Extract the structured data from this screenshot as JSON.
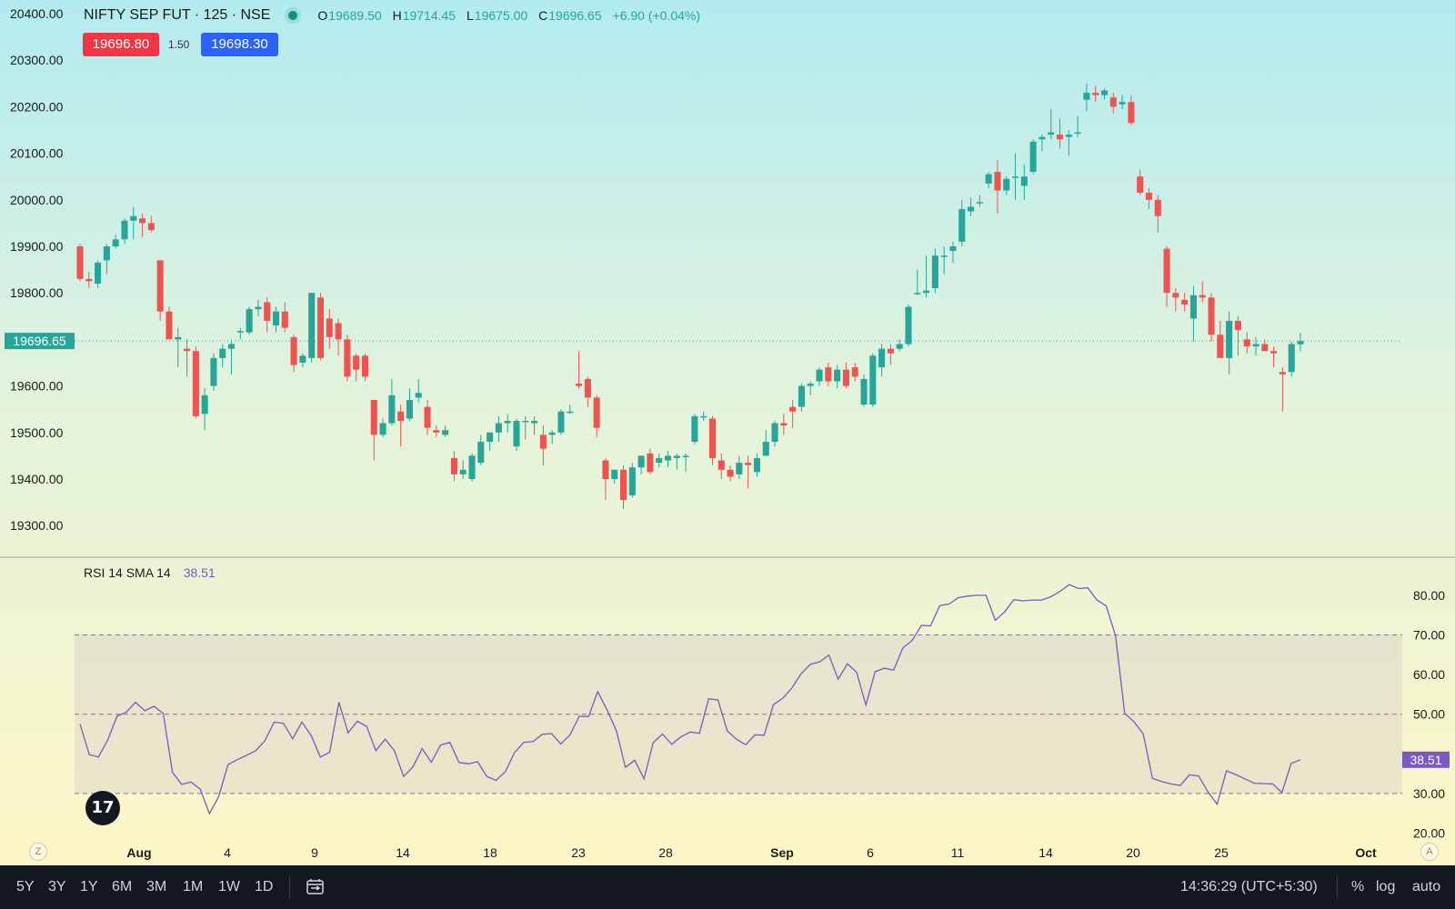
{
  "header": {
    "symbol": "NIFTY SEP FUT · 125 · NSE",
    "o_label": "O",
    "o_value": "19689.50",
    "h_label": "H",
    "h_value": "19714.45",
    "l_label": "L",
    "l_value": "19675.00",
    "c_label": "C",
    "c_value": "19696.65",
    "change": "+6.90 (+0.04%)",
    "sell_price": "19696.80",
    "spread": "1.50",
    "buy_price": "19698.30"
  },
  "rsi_header": {
    "label": "RSI 14 SMA 14",
    "value": "38.51"
  },
  "colors": {
    "up": "#26a69a",
    "down": "#ef5350",
    "rsi": "#7e57c2",
    "sell": "#f23645",
    "buy": "#2962ff"
  },
  "price_axis": {
    "ticks": [
      "20400.00",
      "20300.00",
      "20200.00",
      "20100.00",
      "20000.00",
      "19900.00",
      "19800.00",
      "19600.00",
      "19500.00",
      "19400.00",
      "19300.00"
    ],
    "last_price": "19696.65"
  },
  "rsi_axis": {
    "ticks": [
      "80.00",
      "70.00",
      "60.00",
      "50.00",
      "30.00",
      "20.00"
    ],
    "last_value": "38.51"
  },
  "time_axis": {
    "labels": [
      "Aug",
      "4",
      "9",
      "14",
      "18",
      "23",
      "28",
      "Sep",
      "6",
      "11",
      "14",
      "20",
      "25",
      "Oct"
    ]
  },
  "toolbar": {
    "ranges": [
      "5Y",
      "3Y",
      "1Y",
      "6M",
      "3M",
      "1M",
      "1W",
      "1D"
    ],
    "calendar_icon": "calendar-icon",
    "time": "14:36:29 (UTC+5:30)",
    "percent": "%",
    "log": "log",
    "auto": "auto"
  },
  "chart_data": [
    {
      "type": "candlestick",
      "title": "NIFTY SEP FUT · 125 · NSE",
      "ylim": [
        19250,
        20425
      ],
      "x_range": [
        "Jul 28",
        "Oct 3"
      ],
      "last_price": 19696.65,
      "candles": [
        {
          "o": 19900,
          "h": 19905,
          "l": 19825,
          "c": 19830
        },
        {
          "o": 19830,
          "h": 19845,
          "l": 19810,
          "c": 19825
        },
        {
          "o": 19820,
          "h": 19870,
          "l": 19810,
          "c": 19865
        },
        {
          "o": 19870,
          "h": 19905,
          "l": 19840,
          "c": 19900
        },
        {
          "o": 19900,
          "h": 19925,
          "l": 19895,
          "c": 19915
        },
        {
          "o": 19915,
          "h": 19960,
          "l": 19905,
          "c": 19955
        },
        {
          "o": 19955,
          "h": 19985,
          "l": 19915,
          "c": 19965
        },
        {
          "o": 19960,
          "h": 19970,
          "l": 19920,
          "c": 19950
        },
        {
          "o": 19950,
          "h": 19965,
          "l": 19930,
          "c": 19935
        },
        {
          "o": 19870,
          "h": 19870,
          "l": 19740,
          "c": 19760
        },
        {
          "o": 19760,
          "h": 19770,
          "l": 19700,
          "c": 19700
        },
        {
          "o": 19700,
          "h": 19725,
          "l": 19640,
          "c": 19705
        },
        {
          "o": 19680,
          "h": 19700,
          "l": 19620,
          "c": 19675
        },
        {
          "o": 19675,
          "h": 19685,
          "l": 19530,
          "c": 19535
        },
        {
          "o": 19540,
          "h": 19595,
          "l": 19505,
          "c": 19580
        },
        {
          "o": 19600,
          "h": 19670,
          "l": 19590,
          "c": 19660
        },
        {
          "o": 19660,
          "h": 19690,
          "l": 19640,
          "c": 19680
        },
        {
          "o": 19680,
          "h": 19700,
          "l": 19625,
          "c": 19690
        },
        {
          "o": 19715,
          "h": 19725,
          "l": 19700,
          "c": 19718
        },
        {
          "o": 19715,
          "h": 19770,
          "l": 19710,
          "c": 19765
        },
        {
          "o": 19765,
          "h": 19785,
          "l": 19750,
          "c": 19770
        },
        {
          "o": 19780,
          "h": 19790,
          "l": 19715,
          "c": 19740
        },
        {
          "o": 19730,
          "h": 19770,
          "l": 19715,
          "c": 19760
        },
        {
          "o": 19760,
          "h": 19780,
          "l": 19715,
          "c": 19725
        },
        {
          "o": 19705,
          "h": 19710,
          "l": 19630,
          "c": 19645
        },
        {
          "o": 19650,
          "h": 19670,
          "l": 19640,
          "c": 19665
        },
        {
          "o": 19660,
          "h": 19800,
          "l": 19650,
          "c": 19800
        },
        {
          "o": 19790,
          "h": 19800,
          "l": 19655,
          "c": 19660
        },
        {
          "o": 19745,
          "h": 19765,
          "l": 19680,
          "c": 19705
        },
        {
          "o": 19735,
          "h": 19745,
          "l": 19665,
          "c": 19700
        },
        {
          "o": 19700,
          "h": 19710,
          "l": 19610,
          "c": 19620
        },
        {
          "o": 19665,
          "h": 19670,
          "l": 19610,
          "c": 19635
        },
        {
          "o": 19665,
          "h": 19670,
          "l": 19610,
          "c": 19620
        },
        {
          "o": 19570,
          "h": 19570,
          "l": 19440,
          "c": 19495
        },
        {
          "o": 19495,
          "h": 19530,
          "l": 19490,
          "c": 19520
        },
        {
          "o": 19520,
          "h": 19615,
          "l": 19515,
          "c": 19580
        },
        {
          "o": 19545,
          "h": 19560,
          "l": 19470,
          "c": 19525
        },
        {
          "o": 19530,
          "h": 19595,
          "l": 19525,
          "c": 19570
        },
        {
          "o": 19575,
          "h": 19615,
          "l": 19565,
          "c": 19585
        },
        {
          "o": 19555,
          "h": 19570,
          "l": 19495,
          "c": 19510
        },
        {
          "o": 19505,
          "h": 19515,
          "l": 19490,
          "c": 19500
        },
        {
          "o": 19495,
          "h": 19515,
          "l": 19490,
          "c": 19505
        },
        {
          "o": 19445,
          "h": 19460,
          "l": 19395,
          "c": 19410
        },
        {
          "o": 19410,
          "h": 19440,
          "l": 19400,
          "c": 19420
        },
        {
          "o": 19400,
          "h": 19455,
          "l": 19395,
          "c": 19450
        },
        {
          "o": 19435,
          "h": 19495,
          "l": 19430,
          "c": 19480
        },
        {
          "o": 19480,
          "h": 19500,
          "l": 19460,
          "c": 19500
        },
        {
          "o": 19500,
          "h": 19535,
          "l": 19480,
          "c": 19520
        },
        {
          "o": 19520,
          "h": 19540,
          "l": 19500,
          "c": 19525
        },
        {
          "o": 19470,
          "h": 19530,
          "l": 19460,
          "c": 19525
        },
        {
          "o": 19525,
          "h": 19535,
          "l": 19485,
          "c": 19525
        },
        {
          "o": 19520,
          "h": 19535,
          "l": 19495,
          "c": 19525
        },
        {
          "o": 19495,
          "h": 19515,
          "l": 19430,
          "c": 19465
        },
        {
          "o": 19495,
          "h": 19505,
          "l": 19475,
          "c": 19500
        },
        {
          "o": 19500,
          "h": 19550,
          "l": 19495,
          "c": 19545
        },
        {
          "o": 19545,
          "h": 19560,
          "l": 19540,
          "c": 19545
        },
        {
          "o": 19605,
          "h": 19675,
          "l": 19595,
          "c": 19600
        },
        {
          "o": 19615,
          "h": 19620,
          "l": 19555,
          "c": 19575
        },
        {
          "o": 19575,
          "h": 19580,
          "l": 19490,
          "c": 19510
        },
        {
          "o": 19440,
          "h": 19445,
          "l": 19355,
          "c": 19400
        },
        {
          "o": 19400,
          "h": 19420,
          "l": 19390,
          "c": 19420
        },
        {
          "o": 19420,
          "h": 19430,
          "l": 19335,
          "c": 19355
        },
        {
          "o": 19365,
          "h": 19435,
          "l": 19360,
          "c": 19425
        },
        {
          "o": 19425,
          "h": 19450,
          "l": 19410,
          "c": 19450
        },
        {
          "o": 19455,
          "h": 19465,
          "l": 19410,
          "c": 19415
        },
        {
          "o": 19435,
          "h": 19455,
          "l": 19425,
          "c": 19445
        },
        {
          "o": 19440,
          "h": 19460,
          "l": 19425,
          "c": 19450
        },
        {
          "o": 19445,
          "h": 19455,
          "l": 19420,
          "c": 19450
        },
        {
          "o": 19450,
          "h": 19455,
          "l": 19415,
          "c": 19450
        },
        {
          "o": 19480,
          "h": 19540,
          "l": 19475,
          "c": 19535
        },
        {
          "o": 19535,
          "h": 19545,
          "l": 19525,
          "c": 19535
        },
        {
          "o": 19530,
          "h": 19535,
          "l": 19430,
          "c": 19445
        },
        {
          "o": 19440,
          "h": 19455,
          "l": 19400,
          "c": 19420
        },
        {
          "o": 19420,
          "h": 19430,
          "l": 19395,
          "c": 19405
        },
        {
          "o": 19410,
          "h": 19450,
          "l": 19400,
          "c": 19435
        },
        {
          "o": 19435,
          "h": 19450,
          "l": 19380,
          "c": 19430
        },
        {
          "o": 19415,
          "h": 19455,
          "l": 19405,
          "c": 19445
        },
        {
          "o": 19450,
          "h": 19505,
          "l": 19450,
          "c": 19480
        },
        {
          "o": 19480,
          "h": 19525,
          "l": 19470,
          "c": 19520
        },
        {
          "o": 19520,
          "h": 19540,
          "l": 19495,
          "c": 19515
        },
        {
          "o": 19555,
          "h": 19570,
          "l": 19510,
          "c": 19545
        },
        {
          "o": 19555,
          "h": 19605,
          "l": 19545,
          "c": 19600
        },
        {
          "o": 19600,
          "h": 19610,
          "l": 19580,
          "c": 19605
        },
        {
          "o": 19610,
          "h": 19640,
          "l": 19600,
          "c": 19635
        },
        {
          "o": 19640,
          "h": 19650,
          "l": 19600,
          "c": 19610
        },
        {
          "o": 19610,
          "h": 19645,
          "l": 19595,
          "c": 19635
        },
        {
          "o": 19635,
          "h": 19650,
          "l": 19595,
          "c": 19600
        },
        {
          "o": 19640,
          "h": 19650,
          "l": 19610,
          "c": 19620
        },
        {
          "o": 19560,
          "h": 19625,
          "l": 19555,
          "c": 19615
        },
        {
          "o": 19560,
          "h": 19670,
          "l": 19555,
          "c": 19665
        },
        {
          "o": 19640,
          "h": 19690,
          "l": 19620,
          "c": 19680
        },
        {
          "o": 19680,
          "h": 19690,
          "l": 19645,
          "c": 19670
        },
        {
          "o": 19680,
          "h": 19700,
          "l": 19675,
          "c": 19690
        },
        {
          "o": 19690,
          "h": 19775,
          "l": 19685,
          "c": 19770
        },
        {
          "o": 19800,
          "h": 19850,
          "l": 19795,
          "c": 19800
        },
        {
          "o": 19800,
          "h": 19880,
          "l": 19790,
          "c": 19805
        },
        {
          "o": 19810,
          "h": 19895,
          "l": 19800,
          "c": 19880
        },
        {
          "o": 19880,
          "h": 19900,
          "l": 19840,
          "c": 19880
        },
        {
          "o": 19890,
          "h": 19910,
          "l": 19865,
          "c": 19900
        },
        {
          "o": 19910,
          "h": 20000,
          "l": 19900,
          "c": 19980
        },
        {
          "o": 19975,
          "h": 20005,
          "l": 19965,
          "c": 19985
        },
        {
          "o": 19995,
          "h": 20010,
          "l": 19985,
          "c": 19995
        },
        {
          "o": 20035,
          "h": 20060,
          "l": 20025,
          "c": 20055
        },
        {
          "o": 20060,
          "h": 20085,
          "l": 19970,
          "c": 20020
        },
        {
          "o": 20020,
          "h": 20050,
          "l": 20010,
          "c": 20045
        },
        {
          "o": 20050,
          "h": 20100,
          "l": 20000,
          "c": 20050
        },
        {
          "o": 20030,
          "h": 20075,
          "l": 20000,
          "c": 20050
        },
        {
          "o": 20060,
          "h": 20130,
          "l": 20055,
          "c": 20125
        },
        {
          "o": 20130,
          "h": 20140,
          "l": 20105,
          "c": 20135
        },
        {
          "o": 20140,
          "h": 20195,
          "l": 20130,
          "c": 20145
        },
        {
          "o": 20140,
          "h": 20175,
          "l": 20110,
          "c": 20130
        },
        {
          "o": 20135,
          "h": 20150,
          "l": 20095,
          "c": 20140
        },
        {
          "o": 20145,
          "h": 20180,
          "l": 20135,
          "c": 20145
        },
        {
          "o": 20215,
          "h": 20250,
          "l": 20190,
          "c": 20230
        },
        {
          "o": 20230,
          "h": 20245,
          "l": 20210,
          "c": 20225
        },
        {
          "o": 20225,
          "h": 20240,
          "l": 20215,
          "c": 20235
        },
        {
          "o": 20220,
          "h": 20230,
          "l": 20185,
          "c": 20200
        },
        {
          "o": 20205,
          "h": 20225,
          "l": 20195,
          "c": 20210
        },
        {
          "o": 20210,
          "h": 20225,
          "l": 20160,
          "c": 20165
        },
        {
          "o": 20050,
          "h": 20065,
          "l": 20010,
          "c": 20015
        },
        {
          "o": 20015,
          "h": 20025,
          "l": 19980,
          "c": 20000
        },
        {
          "o": 20000,
          "h": 20010,
          "l": 19930,
          "c": 19965
        },
        {
          "o": 19895,
          "h": 19900,
          "l": 19770,
          "c": 19800
        },
        {
          "o": 19800,
          "h": 19810,
          "l": 19760,
          "c": 19790
        },
        {
          "o": 19785,
          "h": 19800,
          "l": 19760,
          "c": 19775
        },
        {
          "o": 19745,
          "h": 19815,
          "l": 19695,
          "c": 19795
        },
        {
          "o": 19795,
          "h": 19825,
          "l": 19780,
          "c": 19790
        },
        {
          "o": 19790,
          "h": 19800,
          "l": 19695,
          "c": 19710
        },
        {
          "o": 19710,
          "h": 19740,
          "l": 19670,
          "c": 19660
        },
        {
          "o": 19660,
          "h": 19760,
          "l": 19625,
          "c": 19740
        },
        {
          "o": 19740,
          "h": 19750,
          "l": 19665,
          "c": 19720
        },
        {
          "o": 19700,
          "h": 19715,
          "l": 19670,
          "c": 19685
        },
        {
          "o": 19685,
          "h": 19705,
          "l": 19665,
          "c": 19690
        },
        {
          "o": 19690,
          "h": 19700,
          "l": 19680,
          "c": 19675
        },
        {
          "o": 19675,
          "h": 19685,
          "l": 19640,
          "c": 19670
        },
        {
          "o": 19630,
          "h": 19640,
          "l": 19545,
          "c": 19625
        },
        {
          "o": 19630,
          "h": 19695,
          "l": 19620,
          "c": 19690
        },
        {
          "o": 19689.5,
          "h": 19714.45,
          "l": 19675,
          "c": 19696.65
        }
      ]
    },
    {
      "type": "line",
      "title": "RSI 14 SMA 14",
      "ylim": [
        20,
        80
      ],
      "bands": [
        30,
        50,
        70
      ],
      "last_value": 38.51,
      "series": [
        {
          "name": "RSI",
          "values": [
            47.5,
            39.8,
            39.2,
            43.5,
            49.5,
            50.5,
            53.0,
            50.9,
            52.0,
            50.2,
            35.3,
            32.3,
            32.9,
            31.1,
            24.9,
            29.2,
            37.3,
            38.5,
            39.6,
            40.8,
            43.3,
            48.0,
            47.7,
            43.8,
            48.0,
            44.6,
            39.2,
            40.4,
            53.0,
            45.3,
            48.2,
            46.9,
            40.8,
            43.7,
            40.8,
            34.3,
            36.7,
            41.3,
            37.9,
            42.2,
            42.9,
            37.8,
            37.5,
            38.0,
            34.3,
            33.3,
            35.5,
            40.3,
            42.9,
            43.1,
            44.9,
            45.1,
            42.5,
            44.8,
            49.5,
            49.4,
            55.7,
            51.1,
            45.9,
            36.6,
            38.4,
            33.7,
            42.8,
            45.0,
            42.4,
            44.3,
            45.5,
            45.2,
            53.9,
            53.6,
            45.8,
            43.7,
            42.3,
            44.8,
            44.7,
            52.4,
            54.0,
            56.6,
            60.2,
            62.6,
            63.2,
            64.9,
            58.8,
            62.7,
            60.6,
            52.3,
            60.7,
            61.6,
            61.1,
            66.7,
            68.6,
            72.4,
            72.3,
            77.4,
            77.8,
            79.4,
            79.8,
            80.0,
            80.0,
            73.7,
            75.8,
            78.9,
            78.6,
            78.8,
            78.8,
            79.6,
            81.0,
            82.7,
            81.7,
            81.9,
            78.8,
            77.3,
            69.8,
            50.2,
            48.1,
            45.0,
            33.8,
            33.0,
            32.4,
            32.0,
            34.7,
            34.4,
            30.4,
            27.3,
            35.7,
            34.8,
            33.7,
            32.6,
            32.5,
            32.4,
            30.2,
            37.6,
            38.51
          ]
        }
      ]
    }
  ]
}
